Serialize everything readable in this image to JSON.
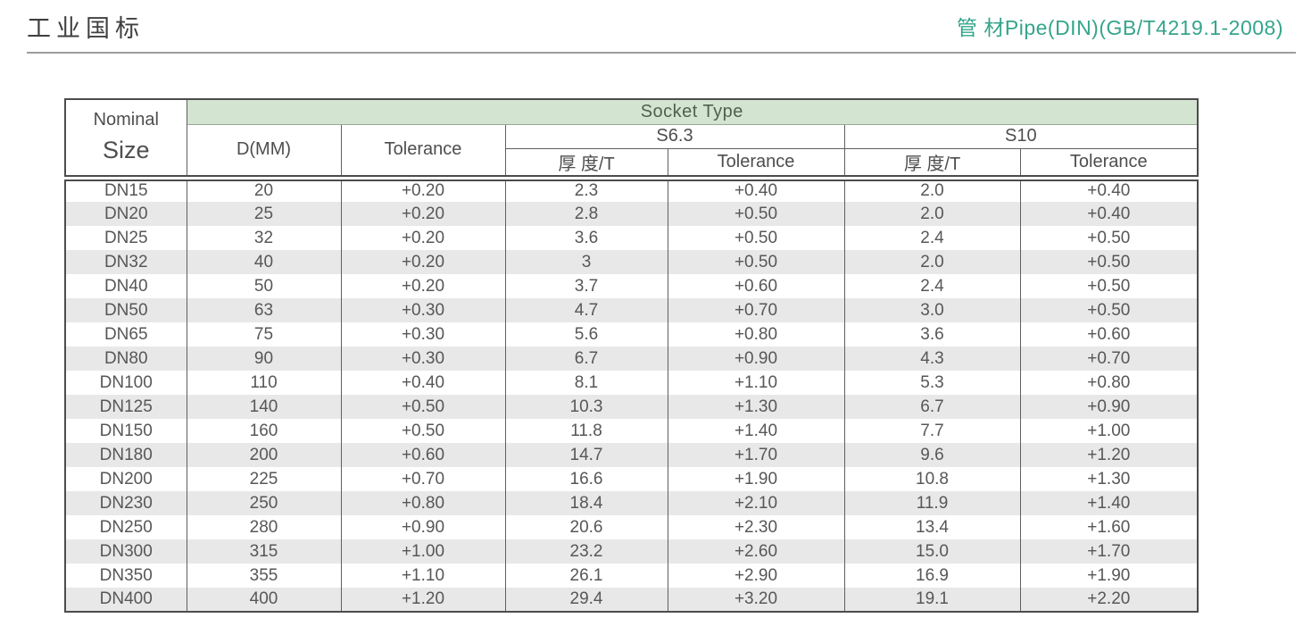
{
  "page": {
    "title": "工业国标",
    "subtitle": "管 材Pipe(DIN)(GB/T4219.1-2008)",
    "accent_color": "#35a48b",
    "band_color": "#d3e4d0"
  },
  "table": {
    "header": {
      "nominal_line1": "Nominal",
      "nominal_line2": "Size",
      "socket_type": "Socket Type",
      "d_mm": "D(MM)",
      "tolerance": "Tolerance",
      "s63": "S6.3",
      "s10": "S10",
      "thickness": "厚 度/T"
    },
    "rows": [
      [
        "DN15",
        "20",
        "+0.20",
        "2.3",
        "+0.40",
        "2.0",
        "+0.40"
      ],
      [
        "DN20",
        "25",
        "+0.20",
        "2.8",
        "+0.50",
        "2.0",
        "+0.40"
      ],
      [
        "DN25",
        "32",
        "+0.20",
        "3.6",
        "+0.50",
        "2.4",
        "+0.50"
      ],
      [
        "DN32",
        "40",
        "+0.20",
        "3",
        "+0.50",
        "2.0",
        "+0.50"
      ],
      [
        "DN40",
        "50",
        "+0.20",
        "3.7",
        "+0.60",
        "2.4",
        "+0.50"
      ],
      [
        "DN50",
        "63",
        "+0.30",
        "4.7",
        "+0.70",
        "3.0",
        "+0.50"
      ],
      [
        "DN65",
        "75",
        "+0.30",
        "5.6",
        "+0.80",
        "3.6",
        "+0.60"
      ],
      [
        "DN80",
        "90",
        "+0.30",
        "6.7",
        "+0.90",
        "4.3",
        "+0.70"
      ],
      [
        "DN100",
        "110",
        "+0.40",
        "8.1",
        "+1.10",
        "5.3",
        "+0.80"
      ],
      [
        "DN125",
        "140",
        "+0.50",
        "10.3",
        "+1.30",
        "6.7",
        "+0.90"
      ],
      [
        "DN150",
        "160",
        "+0.50",
        "11.8",
        "+1.40",
        "7.7",
        "+1.00"
      ],
      [
        "DN180",
        "200",
        "+0.60",
        "14.7",
        "+1.70",
        "9.6",
        "+1.20"
      ],
      [
        "DN200",
        "225",
        "+0.70",
        "16.6",
        "+1.90",
        "10.8",
        "+1.30"
      ],
      [
        "DN230",
        "250",
        "+0.80",
        "18.4",
        "+2.10",
        "11.9",
        "+1.40"
      ],
      [
        "DN250",
        "280",
        "+0.90",
        "20.6",
        "+2.30",
        "13.4",
        "+1.60"
      ],
      [
        "DN300",
        "315",
        "+1.00",
        "23.2",
        "+2.60",
        "15.0",
        "+1.70"
      ],
      [
        "DN350",
        "355",
        "+1.10",
        "26.1",
        "+2.90",
        "16.9",
        "+1.90"
      ],
      [
        "DN400",
        "400",
        "+1.20",
        "29.4",
        "+3.20",
        "19.1",
        "+2.20"
      ]
    ]
  }
}
